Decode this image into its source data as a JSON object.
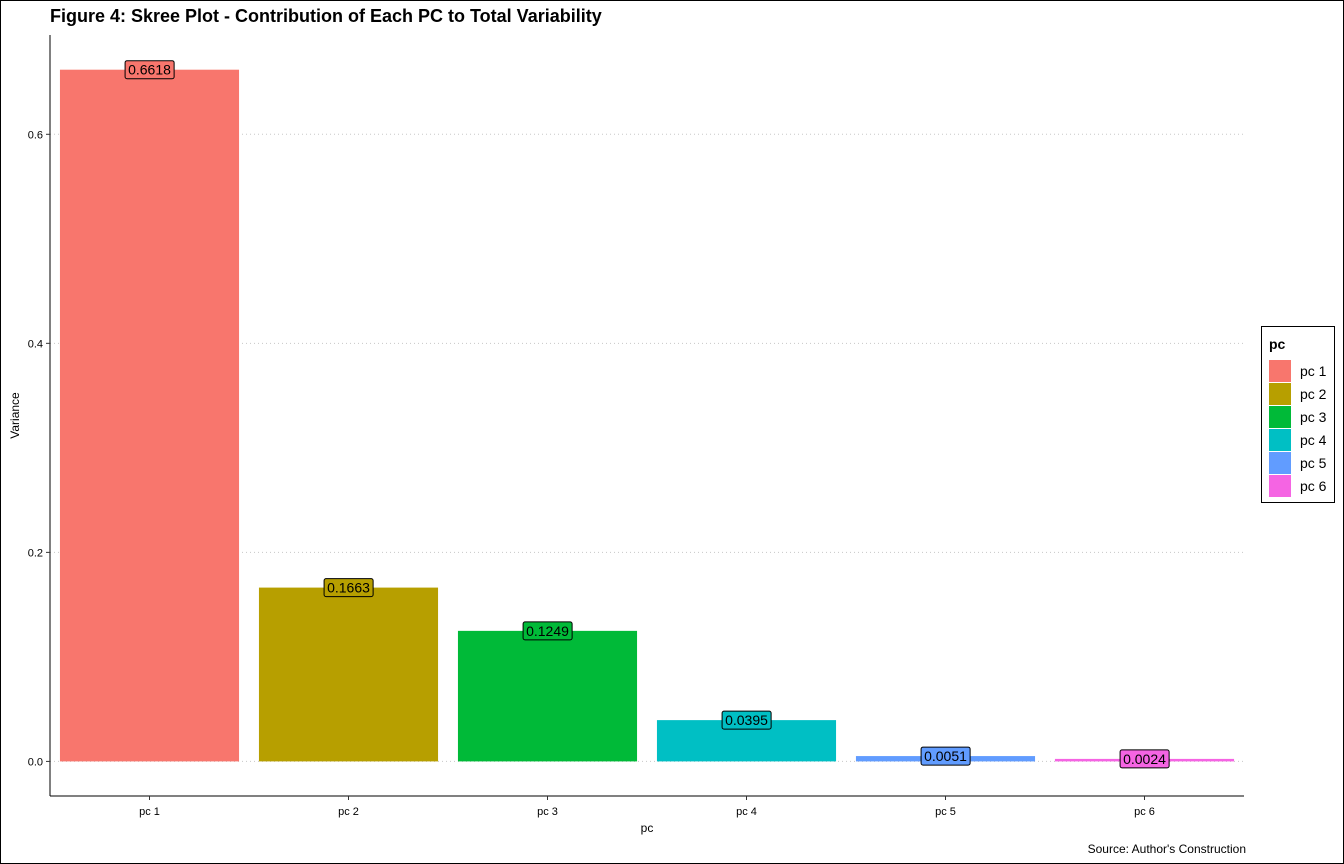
{
  "title": "Figure 4: Skree Plot - Contribution of Each PC to Total Variability",
  "caption": "Source: Author's Construction",
  "chart_data": {
    "type": "bar",
    "categories": [
      "pc 1",
      "pc 2",
      "pc 3",
      "pc 4",
      "pc 5",
      "pc 6"
    ],
    "values": [
      0.6618,
      0.1663,
      0.1249,
      0.0395,
      0.0051,
      0.0024
    ],
    "data_labels": [
      "0.6618",
      "0.1663",
      "0.1249",
      "0.0395",
      "0.0051",
      "0.0024"
    ],
    "colors": [
      "#F8766D",
      "#B79F00",
      "#00BA38",
      "#00BFC4",
      "#619CFF",
      "#F564E3"
    ],
    "xlabel": "pc",
    "ylabel": "Variance",
    "ylim": [
      -0.0331,
      0.695
    ],
    "yticks": [
      0.0,
      0.2,
      0.4,
      0.6
    ],
    "ytick_labels": [
      "0.0",
      "0.2",
      "0.4",
      "0.6"
    ],
    "grid": "horizontal dotted major",
    "legend": {
      "title": "pc",
      "placement": "right",
      "entries": [
        "pc 1",
        "pc 2",
        "pc 3",
        "pc 4",
        "pc 5",
        "pc 6"
      ]
    }
  }
}
